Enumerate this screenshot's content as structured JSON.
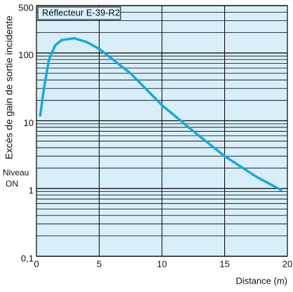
{
  "chart_data": {
    "type": "line",
    "title": "Réflecteur E-39-R2",
    "y_label": "Excès de gain de sortie incidente",
    "x_label": "Distance (m)",
    "annotation": [
      "Niveau",
      "ON"
    ],
    "log_y": true,
    "grid": true,
    "background": "#d8eef8",
    "xlim": [
      0,
      20
    ],
    "xticks": [
      0,
      5,
      10,
      15,
      20
    ],
    "ylim": [
      0.1,
      500
    ],
    "yticks": [
      {
        "value": 0.1,
        "label": "0,1"
      },
      1,
      10,
      100,
      500
    ],
    "minor_yticks": [
      0.2,
      0.3,
      0.4,
      0.5,
      0.6,
      0.7,
      0.8,
      0.9,
      2,
      3,
      4,
      5,
      6,
      7,
      8,
      9,
      20,
      30,
      40,
      50,
      60,
      70,
      80,
      90,
      200,
      300,
      400
    ],
    "series": [
      {
        "name": "Réflecteur E-39-R2",
        "color": "#1ba7e1",
        "x": [
          0.3,
          0.6,
          1,
          1.5,
          2,
          3,
          4,
          5,
          7.5,
          10,
          12.5,
          15,
          17.5,
          19.5
        ],
        "values": [
          12,
          30,
          80,
          130,
          155,
          165,
          145,
          115,
          50,
          17,
          7,
          3,
          1.5,
          0.95
        ]
      }
    ]
  }
}
